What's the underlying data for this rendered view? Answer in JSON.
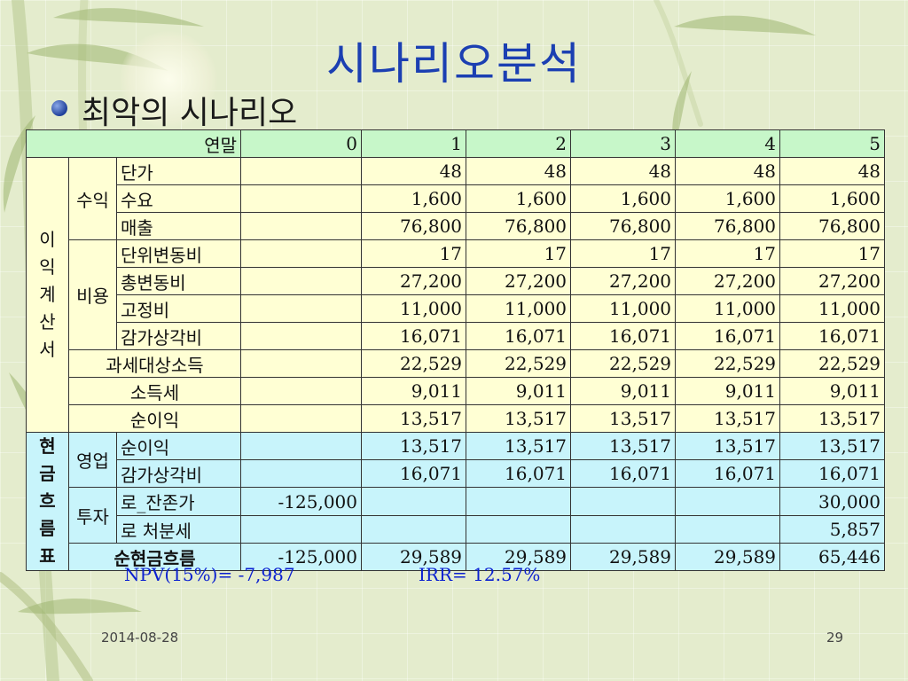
{
  "slide": {
    "title": "시나리오분석",
    "subtitle": "최악의 시나리오",
    "footer_date": "2014-08-28",
    "page_number": "29",
    "npv_text": "NPV(15%)= -7,987",
    "irr_text": "IRR= 12.57%"
  },
  "table": {
    "header": {
      "label": "연말",
      "years": [
        "0",
        "1",
        "2",
        "3",
        "4",
        "5"
      ]
    },
    "income_section": [
      "이",
      "익",
      "계",
      "산",
      "서"
    ],
    "cashflow_section": [
      "현",
      "금",
      "흐",
      "름",
      "표"
    ],
    "groups": {
      "revenue": "수익",
      "cost": "비용",
      "operating": "영업",
      "investment": "투자"
    },
    "rows": {
      "unit_price": {
        "label": "단가",
        "values": [
          "",
          "48",
          "48",
          "48",
          "48",
          "48"
        ]
      },
      "demand": {
        "label": "수요",
        "values": [
          "",
          "1,600",
          "1,600",
          "1,600",
          "1,600",
          "1,600"
        ]
      },
      "sales": {
        "label": "매출",
        "values": [
          "",
          "76,800",
          "76,800",
          "76,800",
          "76,800",
          "76,800"
        ]
      },
      "unit_var_cost": {
        "label": "단위변동비",
        "values": [
          "",
          "17",
          "17",
          "17",
          "17",
          "17"
        ]
      },
      "total_var_cost": {
        "label": "총변동비",
        "values": [
          "",
          "27,200",
          "27,200",
          "27,200",
          "27,200",
          "27,200"
        ]
      },
      "fixed_cost": {
        "label": "고정비",
        "values": [
          "",
          "11,000",
          "11,000",
          "11,000",
          "11,000",
          "11,000"
        ]
      },
      "depreciation": {
        "label": "감가상각비",
        "values": [
          "",
          "16,071",
          "16,071",
          "16,071",
          "16,071",
          "16,071"
        ]
      },
      "taxable_income": {
        "label": "과세대상소득",
        "values": [
          "",
          "22,529",
          "22,529",
          "22,529",
          "22,529",
          "22,529"
        ]
      },
      "income_tax": {
        "label": "소득세",
        "values": [
          "",
          "9,011",
          "9,011",
          "9,011",
          "9,011",
          "9,011"
        ]
      },
      "net_income": {
        "label": "순이익",
        "values": [
          "",
          "13,517",
          "13,517",
          "13,517",
          "13,517",
          "13,517"
        ]
      },
      "cf_net_income": {
        "label": "순이익",
        "values": [
          "",
          "13,517",
          "13,517",
          "13,517",
          "13,517",
          "13,517"
        ]
      },
      "cf_depreciation": {
        "label": "감가상각비",
        "values": [
          "",
          "16,071",
          "16,071",
          "16,071",
          "16,071",
          "16,071"
        ]
      },
      "cf_investment": {
        "label": "로_잔존가",
        "values": [
          "-125,000",
          "",
          "",
          "",
          "",
          "30,000"
        ]
      },
      "cf_disposal_tax": {
        "label": "로 처분세",
        "values": [
          "",
          "",
          "",
          "",
          "",
          "5,857"
        ]
      },
      "net_cash_flow": {
        "label": "순현금흐름",
        "values": [
          "-125,000",
          "29,589",
          "29,589",
          "29,589",
          "29,589",
          "65,446"
        ]
      }
    }
  }
}
